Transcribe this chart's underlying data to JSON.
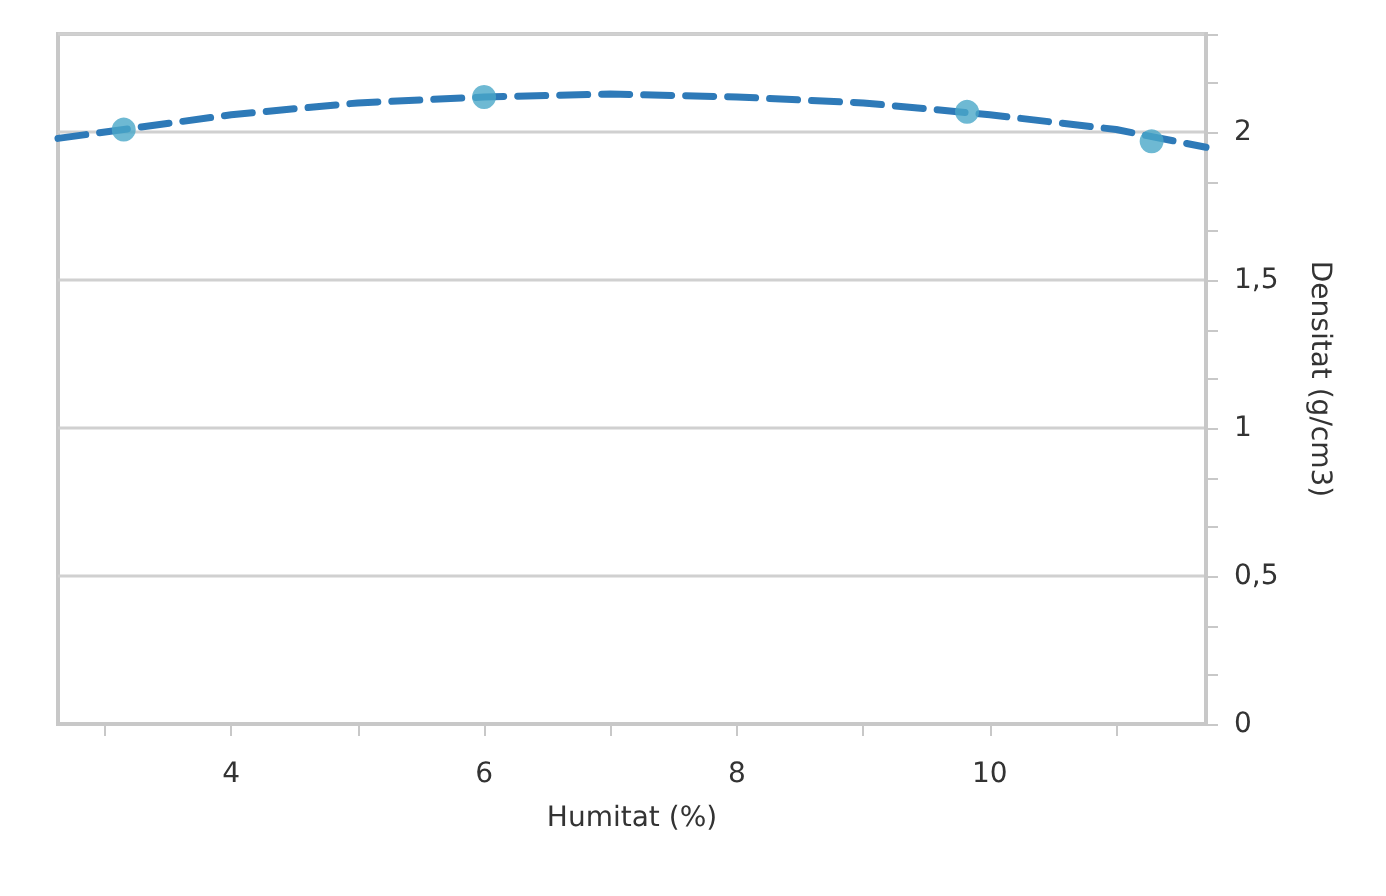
{
  "chart_data": {
    "type": "scatter",
    "xlabel": "Humitat (%)",
    "ylabel": "Densitat (g/cm3)",
    "xlim": [
      2.63,
      11.71
    ],
    "ylim": [
      0,
      2.333
    ],
    "xticks": [
      {
        "value": 3,
        "label": null
      },
      4,
      {
        "value": 5,
        "label": null
      },
      6,
      {
        "value": 7,
        "label": null
      },
      8,
      {
        "value": 9,
        "label": null
      },
      10,
      {
        "value": 11,
        "label": null
      }
    ],
    "yticks": [
      0,
      {
        "value": 0.167,
        "label": null
      },
      {
        "value": 0.333,
        "label": null
      },
      {
        "value": 0.5,
        "label": "0,5"
      },
      {
        "value": 0.667,
        "label": null
      },
      {
        "value": 0.833,
        "label": null
      },
      1,
      {
        "value": 1.167,
        "label": null
      },
      {
        "value": 1.333,
        "label": null
      },
      {
        "value": 1.5,
        "label": "1,5"
      },
      {
        "value": 1.667,
        "label": null
      },
      {
        "value": 1.833,
        "label": null
      },
      2,
      {
        "value": 2.167,
        "label": null
      },
      {
        "value": 2.333,
        "label": null
      }
    ],
    "grid": true,
    "marker": "circle",
    "series": [
      {
        "type": "line",
        "color": "#2e7ab8",
        "line_style": "dashed",
        "marker": "none",
        "x": [
          2.63,
          4,
          5,
          6,
          7,
          8,
          9,
          10,
          11,
          11.71
        ],
        "values": [
          1.98,
          2.06,
          2.1,
          2.12,
          2.13,
          2.12,
          2.1,
          2.06,
          2.01,
          1.95
        ]
      },
      {
        "color": "#4aa8c8",
        "x": [
          3.15,
          6.0,
          9.82,
          11.28
        ],
        "values": [
          2.01,
          2.12,
          2.07,
          1.97
        ]
      }
    ]
  }
}
